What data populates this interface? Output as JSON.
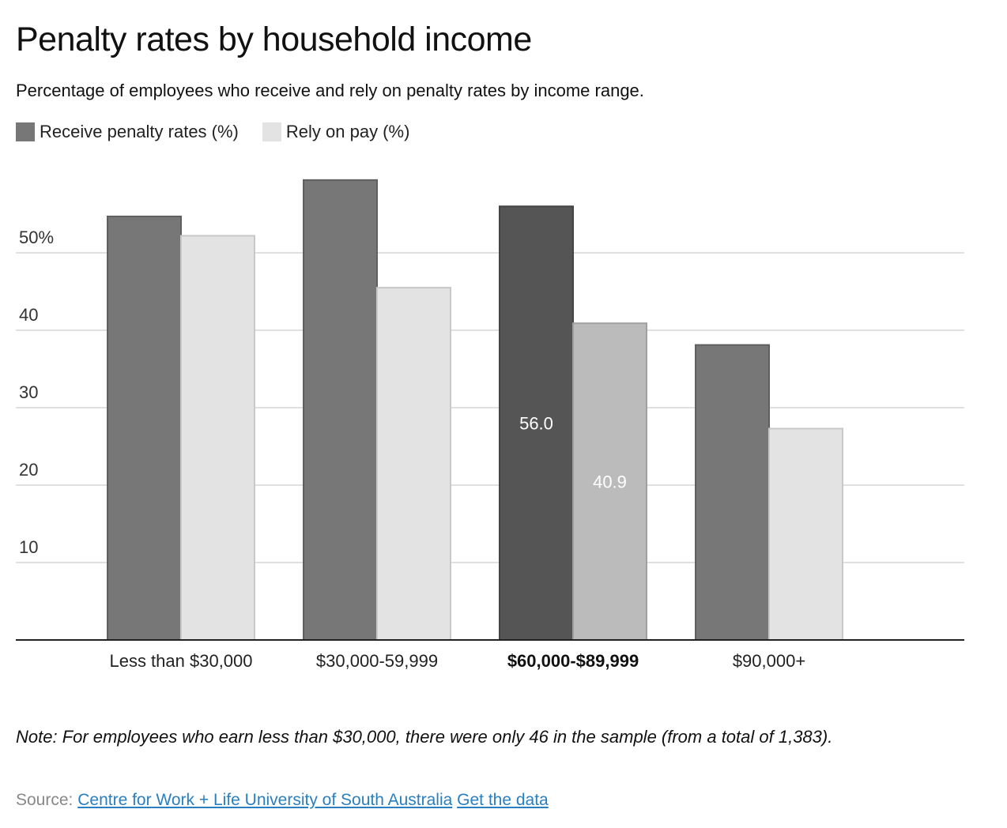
{
  "header": {
    "title": "Penalty rates by household income",
    "subtitle": "Percentage of employees who receive and rely on penalty rates by income range."
  },
  "legend": {
    "items": [
      {
        "label": "Receive penalty rates (%)",
        "color": "#777777"
      },
      {
        "label": "Rely on pay (%)",
        "color": "#e3e3e3"
      }
    ]
  },
  "chart_data": {
    "type": "bar",
    "title": "Penalty rates by household income",
    "subtitle": "Percentage of employees who receive and rely on penalty rates by income range.",
    "categories": [
      "Less than $30,000",
      "$30,000-59,999",
      "$60,000-$89,999",
      "$90,000+"
    ],
    "highlight_category": "$60,000-$89,999",
    "series": [
      {
        "name": "Receive penalty rates (%)",
        "values": [
          54.7,
          59.4,
          56.0,
          38.1
        ],
        "color": "#777777",
        "highlight_color": "#555555"
      },
      {
        "name": "Rely on pay (%)",
        "values": [
          52.2,
          45.5,
          40.9,
          27.3
        ],
        "color": "#e3e3e3",
        "highlight_color": "#bbbbbb"
      }
    ],
    "data_labels": [
      {
        "category": "$60,000-$89,999",
        "series": "Receive penalty rates (%)",
        "text": "56.0"
      },
      {
        "category": "$60,000-$89,999",
        "series": "Rely on pay (%)",
        "text": "40.9"
      }
    ],
    "y_ticks": [
      {
        "value": 10,
        "label": "10"
      },
      {
        "value": 20,
        "label": "20"
      },
      {
        "value": 30,
        "label": "30"
      },
      {
        "value": 40,
        "label": "40"
      },
      {
        "value": 50,
        "label": "50%"
      }
    ],
    "ylim": [
      0,
      62
    ],
    "grid": true,
    "legend_position": "top-left",
    "xlabel": "",
    "ylabel": ""
  },
  "footer": {
    "note": "Note: For employees who earn less than $30,000, there were only 46 in the sample (from a total of 1,383).",
    "source_label": "Source:",
    "source_link": "Centre for Work + Life University of South Australia",
    "data_link": "Get the data"
  }
}
